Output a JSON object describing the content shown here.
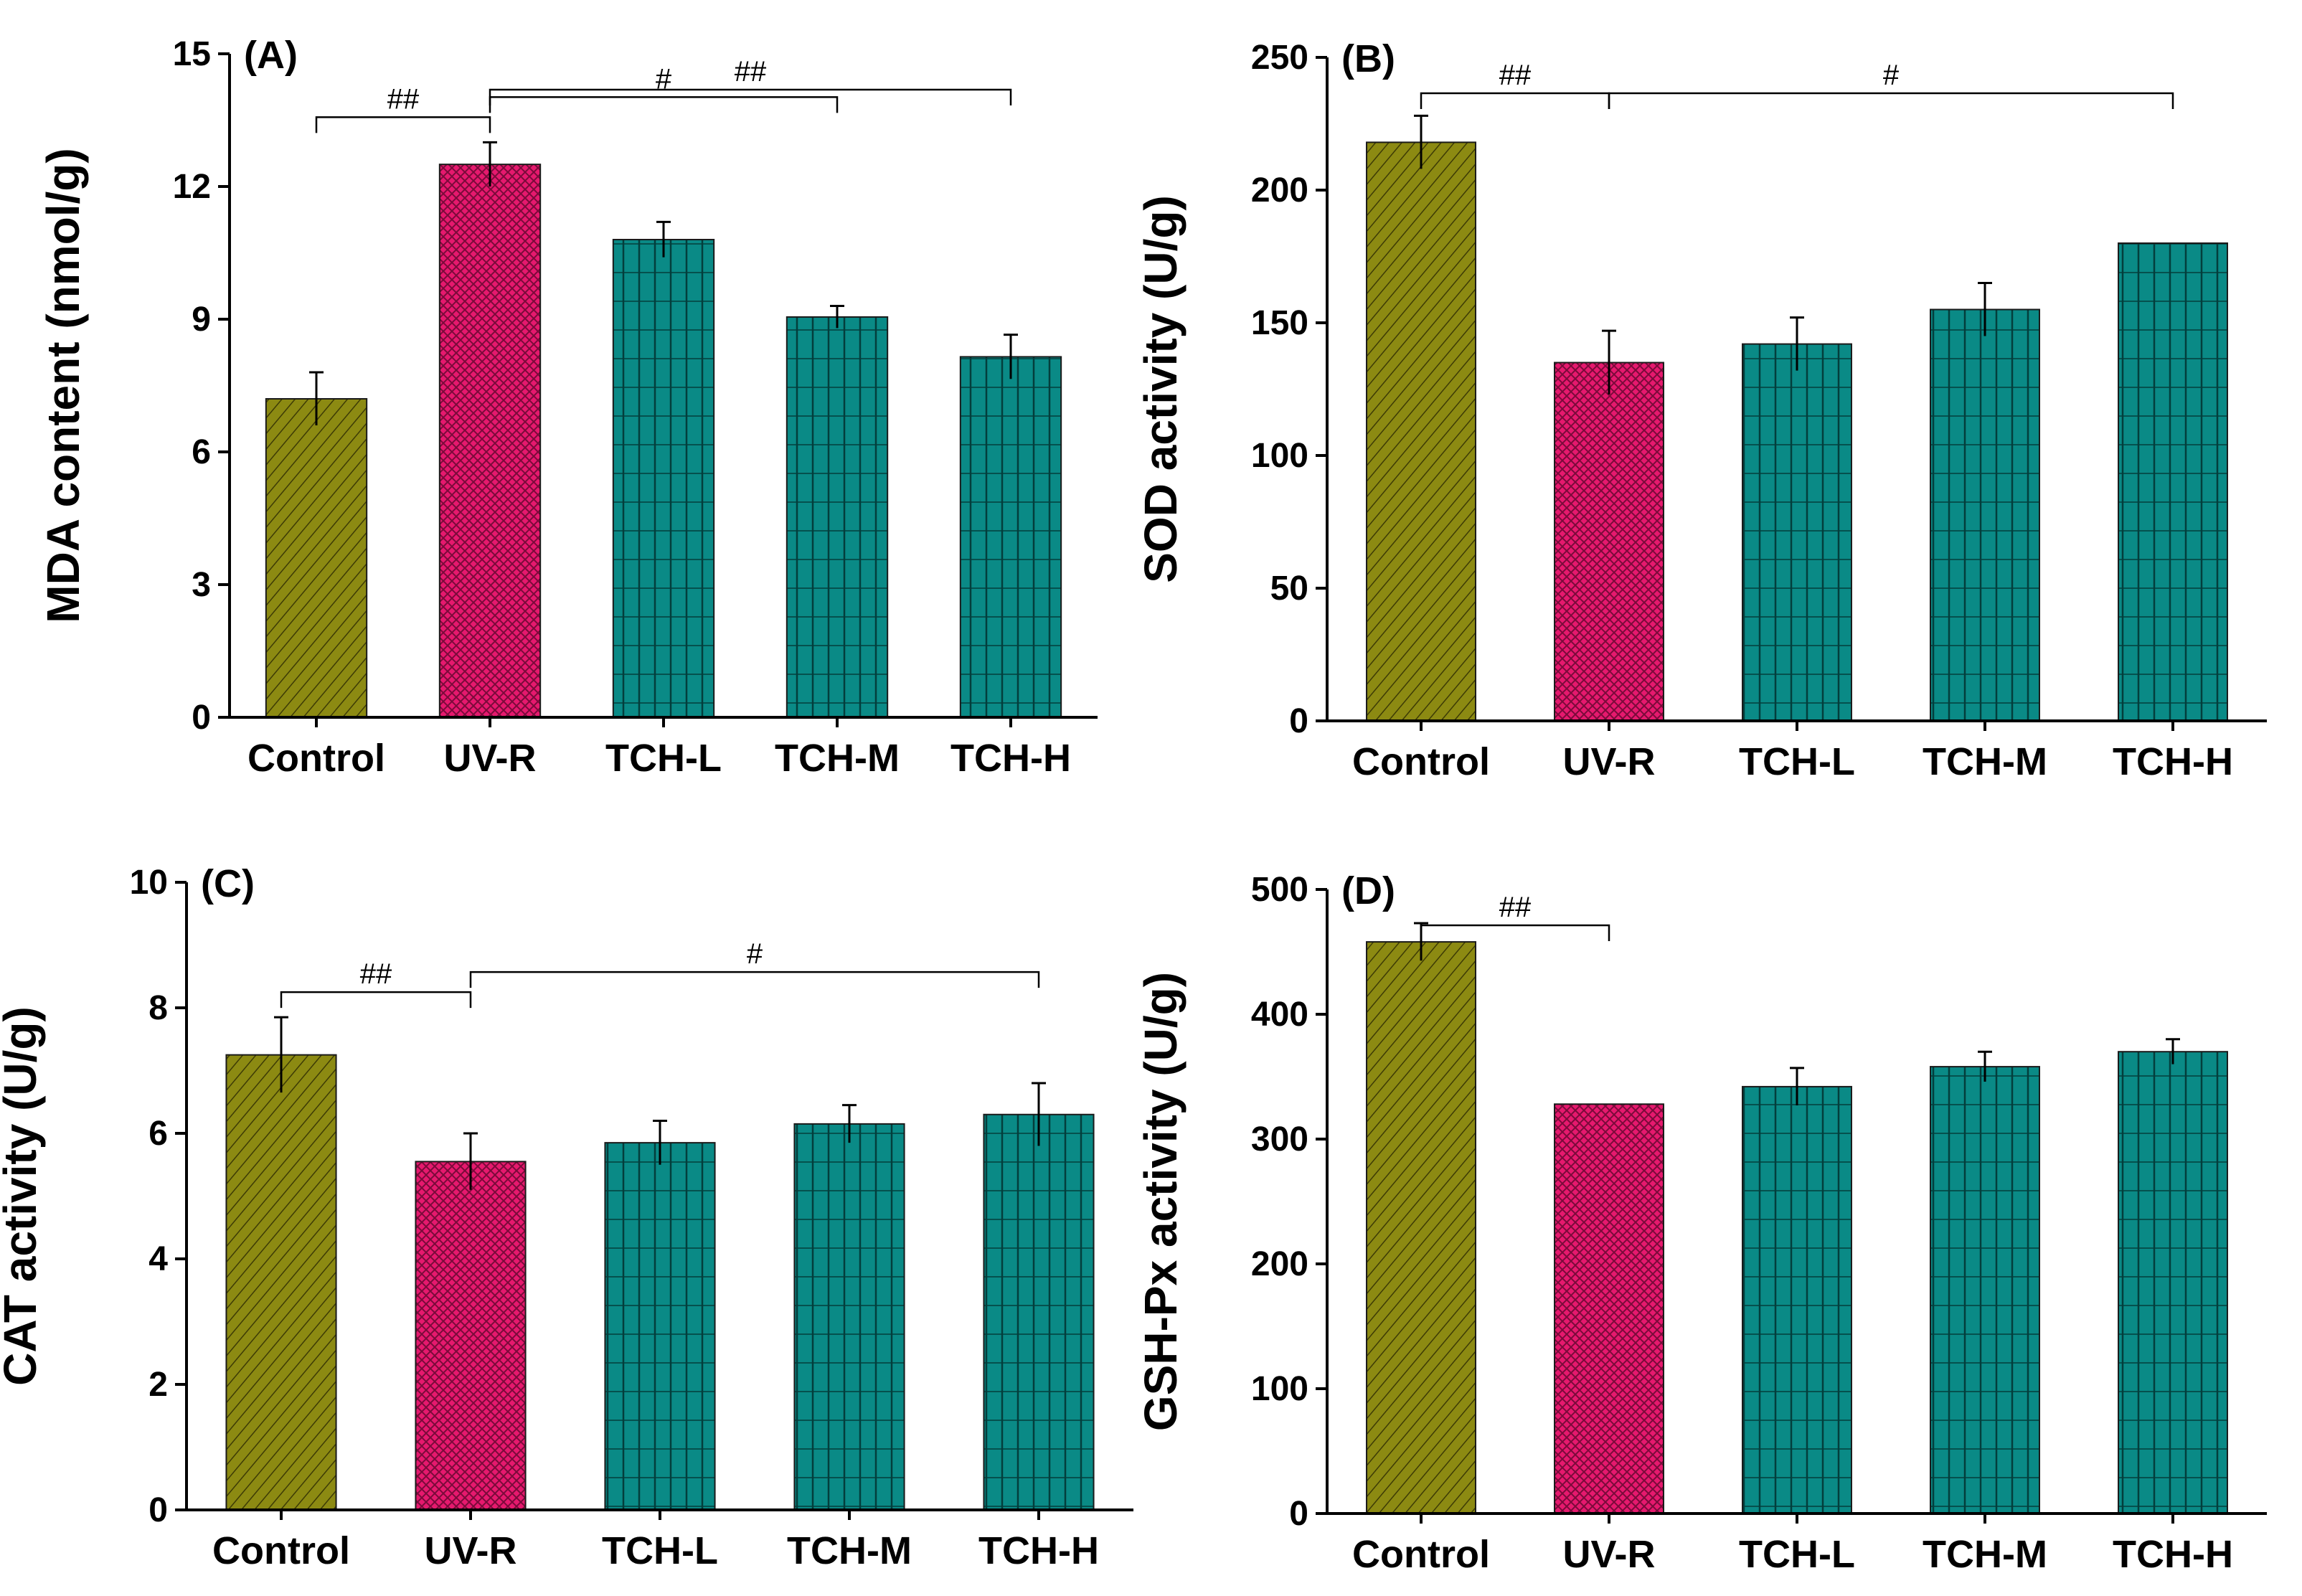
{
  "chart_data": [
    {
      "panel": "(A)",
      "type": "bar",
      "ylabel": "MDA content (nmol/g)",
      "ylim": [
        0,
        15
      ],
      "yticks": [
        0,
        3,
        6,
        9,
        12,
        15
      ],
      "categories": [
        "Control",
        "UV-R",
        "TCH-L",
        "TCH-M",
        "TCH-H"
      ],
      "values": [
        7.2,
        12.5,
        10.8,
        9.05,
        8.15
      ],
      "errors": [
        0.6,
        0.5,
        0.4,
        0.25,
        0.5
      ],
      "bar_colors": [
        "#8c8a12",
        "#e6196e",
        "#0a8a86",
        "#0a8a86",
        "#0a8a86"
      ],
      "significance": [
        {
          "from": 0,
          "to": 1,
          "label": "##"
        },
        {
          "from": 1,
          "to": 3,
          "label": "#"
        },
        {
          "from": 1,
          "to": 4,
          "label": "##"
        }
      ]
    },
    {
      "panel": "(B)",
      "type": "bar",
      "ylabel": "SOD activity (U/g)",
      "ylim": [
        0,
        250
      ],
      "yticks": [
        0,
        50,
        100,
        150,
        200,
        250
      ],
      "categories": [
        "Control",
        "UV-R",
        "TCH-L",
        "TCH-M",
        "TCH-H"
      ],
      "values": [
        218,
        135,
        142,
        155,
        180
      ],
      "errors": [
        10,
        12,
        10,
        10,
        0
      ],
      "bar_colors": [
        "#8c8a12",
        "#e6196e",
        "#0a8a86",
        "#0a8a86",
        "#0a8a86"
      ],
      "significance": [
        {
          "from": 0,
          "to": 1,
          "label": "##"
        },
        {
          "from": 1,
          "to": 4,
          "label": "#"
        }
      ]
    },
    {
      "panel": "(C)",
      "type": "bar",
      "ylabel": "CAT activity (U/g)",
      "ylim": [
        0,
        10
      ],
      "yticks": [
        0,
        2,
        4,
        6,
        8,
        10
      ],
      "categories": [
        "Control",
        "UV-R",
        "TCH-L",
        "TCH-M",
        "TCH-H"
      ],
      "values": [
        7.25,
        5.55,
        5.85,
        6.15,
        6.3
      ],
      "errors": [
        0.6,
        0.45,
        0.35,
        0.3,
        0.5
      ],
      "bar_colors": [
        "#8c8a12",
        "#e6196e",
        "#0a8a86",
        "#0a8a86",
        "#0a8a86"
      ],
      "significance": [
        {
          "from": 0,
          "to": 1,
          "label": "##"
        },
        {
          "from": 1,
          "to": 4,
          "label": "#"
        }
      ]
    },
    {
      "panel": "(D)",
      "type": "bar",
      "ylabel": "GSH-Px activity (U/g)",
      "ylim": [
        0,
        500
      ],
      "yticks": [
        0,
        100,
        200,
        300,
        400,
        500
      ],
      "categories": [
        "Control",
        "UV-R",
        "TCH-L",
        "TCH-M",
        "TCH-H"
      ],
      "values": [
        458,
        328,
        342,
        358,
        370
      ],
      "errors": [
        15,
        0,
        15,
        12,
        10
      ],
      "bar_colors": [
        "#8c8a12",
        "#e6196e",
        "#0a8a86",
        "#0a8a86",
        "#0a8a86"
      ],
      "significance": [
        {
          "from": 0,
          "to": 1,
          "label": "##"
        }
      ]
    }
  ]
}
